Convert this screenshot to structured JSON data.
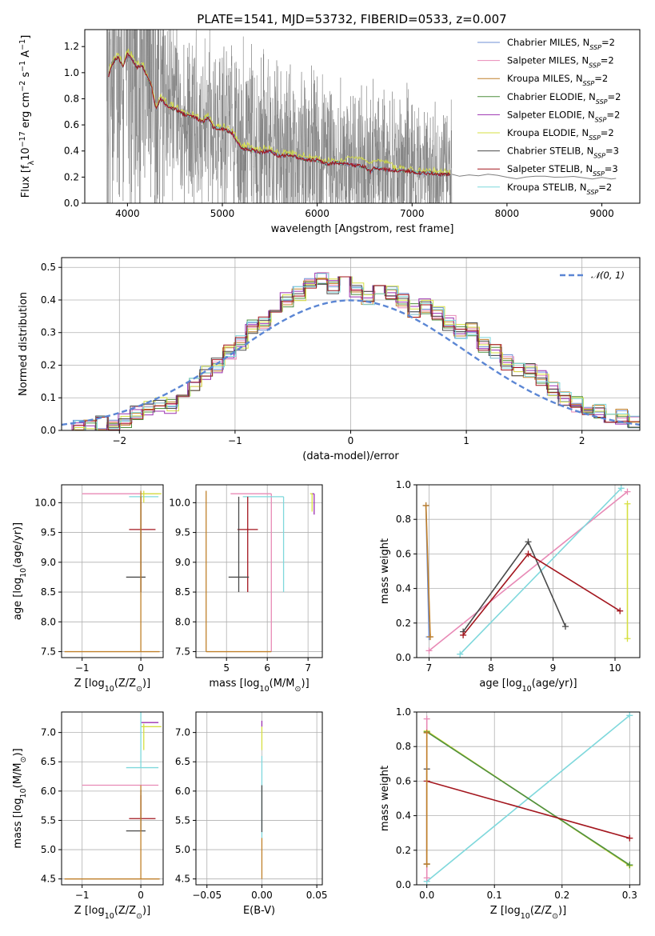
{
  "title": "PLATE=1541, MJD=53732, FIBERID=0533, z=0.007",
  "colors": {
    "Chabrier MILES": "#6f8fd6",
    "Salpeter MILES": "#e88ab6",
    "Kroupa MILES": "#c0802a",
    "Chabrier ELODIE": "#4f8f3f",
    "Salpeter ELODIE": "#9b30b0",
    "Kroupa ELODIE": "#d6df40",
    "Chabrier STELIB": "#4a4a4a",
    "Salpeter STELIB": "#a3161e",
    "Kroupa STELIB": "#7fd8dc",
    "data": "#7f7f7f",
    "normal": "#5b86d4",
    "orange": "#e8803a"
  },
  "chart_data": [
    {
      "id": "spectrum",
      "type": "line",
      "xlabel": "wavelength [Angstrom, rest frame]",
      "ylabel": "Flux [f$_\\lambda$10$^{-17}$ erg cm$^{-2}$ s$^{-1}$ A$^{-1}$]",
      "ylabel_parts": {
        "prefix": "Flux [f",
        "sub1": "λ",
        "mid1": "10",
        "sup1": "−17",
        "mid2": " erg cm",
        "sup2": "−2",
        "mid3": " s",
        "sup3": "−1",
        "mid4": " A",
        "sup4": "−1",
        "suffix": "]"
      },
      "xlim": [
        3550,
        9400
      ],
      "ylim": [
        0,
        1.33
      ],
      "xticks": [
        4000,
        5000,
        6000,
        7000,
        8000,
        9000
      ],
      "yticks": [
        0.0,
        0.2,
        0.4,
        0.6,
        0.8,
        1.0,
        1.2
      ],
      "ytick_labels": [
        "0.0",
        "0.2",
        "0.4",
        "0.6",
        "0.8",
        "1.0",
        "1.2"
      ],
      "legend_position": "upper right",
      "legend": [
        {
          "name": "Chabrier MILES",
          "pre": "Chabrier MILES, N",
          "sub": "SSP",
          "post": "=2"
        },
        {
          "name": "Salpeter MILES",
          "pre": "Salpeter MILES, N",
          "sub": "SSP",
          "post": "=2"
        },
        {
          "name": "Kroupa MILES",
          "pre": "Kroupa MILES, N",
          "sub": "SSP",
          "post": "=2"
        },
        {
          "name": "Chabrier ELODIE",
          "pre": "Chabrier ELODIE, N",
          "sub": "SSP",
          "post": "=2"
        },
        {
          "name": "Salpeter ELODIE",
          "pre": "Salpeter ELODIE, N",
          "sub": "SSP",
          "post": "=2"
        },
        {
          "name": "Kroupa ELODIE",
          "pre": "Kroupa ELODIE, N",
          "sub": "SSP",
          "post": "=2"
        },
        {
          "name": "Chabrier STELIB",
          "pre": "Chabrier STELIB, N",
          "sub": "SSP",
          "post": "=3"
        },
        {
          "name": "Salpeter STELIB",
          "pre": "Salpeter STELIB, N",
          "sub": "SSP",
          "post": "=3"
        },
        {
          "name": "Kroupa STELIB",
          "pre": "Kroupa STELIB, N",
          "sub": "SSP",
          "post": "=2"
        }
      ],
      "model_x": [
        3800,
        3850,
        3900,
        3950,
        4000,
        4050,
        4100,
        4150,
        4200,
        4250,
        4300,
        4350,
        4400,
        4450,
        4500,
        4600,
        4700,
        4800,
        4850,
        4900,
        5000,
        5100,
        5150,
        5200,
        5300,
        5400,
        5500,
        5600,
        5700,
        5800,
        5900,
        6000,
        6100,
        6200,
        6300,
        6400,
        6500,
        6563,
        6600,
        6700,
        6800,
        6900,
        7000,
        7100,
        7200,
        7300,
        7400
      ],
      "model_y": [
        0.98,
        1.08,
        1.12,
        1.05,
        1.14,
        1.1,
        1.04,
        1.06,
        0.98,
        0.9,
        0.72,
        0.8,
        0.76,
        0.73,
        0.72,
        0.68,
        0.66,
        0.62,
        0.66,
        0.58,
        0.57,
        0.54,
        0.48,
        0.42,
        0.41,
        0.39,
        0.4,
        0.36,
        0.37,
        0.35,
        0.33,
        0.33,
        0.3,
        0.31,
        0.3,
        0.29,
        0.28,
        0.24,
        0.27,
        0.26,
        0.25,
        0.25,
        0.24,
        0.23,
        0.23,
        0.22,
        0.22
      ],
      "data_tail_x": [
        7420,
        7500,
        7600,
        7700,
        7800,
        7900,
        8000,
        8100,
        8200,
        8300,
        8400,
        8500,
        8600,
        8700,
        8800,
        8900,
        9000,
        9100,
        9150
      ],
      "data_tail_y": [
        0.22,
        0.21,
        0.22,
        0.21,
        0.22,
        0.21,
        0.2,
        0.19,
        0.2,
        0.21,
        0.21,
        0.2,
        0.2,
        0.21,
        0.2,
        0.19,
        0.2,
        0.19,
        0.19
      ],
      "data_noise_xrange": [
        3780,
        7420
      ]
    },
    {
      "id": "residuals",
      "type": "histogram",
      "xlabel": "(data-model)/error",
      "ylabel": "Normed distribution",
      "xlim": [
        -2.5,
        2.5
      ],
      "ylim": [
        0,
        0.53
      ],
      "xticks": [
        -2,
        -1,
        0,
        1,
        2
      ],
      "xtick_labels": [
        "−2",
        "−1",
        "0",
        "1",
        "2"
      ],
      "yticks": [
        0.0,
        0.1,
        0.2,
        0.3,
        0.4,
        0.5
      ],
      "ytick_labels": [
        "0.0",
        "0.1",
        "0.2",
        "0.3",
        "0.4",
        "0.5"
      ],
      "legend_position": "upper right",
      "normal_legend": "𝒩(0, 1)",
      "bin_width": 0.1,
      "bins_start": -2.5,
      "hist_values": [
        0.0,
        0.01,
        0.01,
        0.02,
        0.02,
        0.03,
        0.05,
        0.07,
        0.08,
        0.07,
        0.1,
        0.14,
        0.18,
        0.2,
        0.24,
        0.27,
        0.32,
        0.33,
        0.36,
        0.4,
        0.42,
        0.45,
        0.47,
        0.44,
        0.45,
        0.43,
        0.41,
        0.44,
        0.42,
        0.4,
        0.37,
        0.38,
        0.36,
        0.33,
        0.3,
        0.31,
        0.26,
        0.24,
        0.21,
        0.19,
        0.18,
        0.16,
        0.13,
        0.1,
        0.08,
        0.07,
        0.06,
        0.04,
        0.04,
        0.03
      ],
      "series_jitter": [
        0.0,
        0.02,
        -0.015,
        0.01,
        -0.02,
        0.025,
        -0.01,
        0.015,
        0.005
      ]
    },
    {
      "id": "age_vs_Z",
      "type": "errorbar",
      "xlabel": "Z [log$_{10}$(Z/Z$_\\odot$)]",
      "ylabel": "age  [log$_{10}$(age/yr)]",
      "xlim": [
        -1.35,
        0.38
      ],
      "ylim": [
        7.4,
        10.3
      ],
      "xticks": [
        -1,
        0
      ],
      "xtick_labels": [
        "−1",
        "0"
      ],
      "yticks": [
        7.5,
        8.0,
        8.5,
        9.0,
        9.5,
        10.0
      ],
      "ytick_labels": [
        "7.5",
        "8.0",
        "8.5",
        "9.0",
        "9.5",
        "10.0"
      ],
      "points": [
        {
          "series": "Salpeter MILES",
          "x": 0.0,
          "y": 10.15,
          "xerr": [
            1.0,
            0.3
          ],
          "yerr": [
            0.02,
            0.02
          ]
        },
        {
          "series": "Kroupa STELIB",
          "x": 0.0,
          "y": 10.1,
          "xerr": [
            0.2,
            0.3
          ],
          "yerr": [
            1.6,
            0.05
          ]
        },
        {
          "series": "Salpeter STELIB",
          "x": 0.0,
          "y": 9.55,
          "xerr": [
            0.2,
            0.25
          ],
          "yerr": [
            1.05,
            0.55
          ]
        },
        {
          "series": "Chabrier STELIB",
          "x": 0.0,
          "y": 8.75,
          "xerr": [
            0.25,
            0.08
          ],
          "yerr": [
            0.25,
            1.35
          ]
        },
        {
          "series": "Kroupa ELODIE",
          "x": 0.05,
          "y": 10.15,
          "xerr": [
            0.05,
            0.3
          ],
          "yerr": [
            0.15,
            0.05
          ]
        },
        {
          "series": "Kroupa MILES",
          "x": 0.0,
          "y": 7.5,
          "xerr": [
            1.3,
            0.32
          ],
          "yerr": [
            0.0,
            2.7
          ]
        }
      ]
    },
    {
      "id": "age_vs_mass",
      "type": "errorbar",
      "xlabel": "mass [log$_{10}$(M/M$_\\odot$)]",
      "ylabel": "",
      "xlim": [
        4.25,
        7.35
      ],
      "ylim": [
        7.4,
        10.3
      ],
      "xticks": [
        5,
        6,
        7
      ],
      "xtick_labels": [
        "5",
        "6",
        "7"
      ],
      "yticks": [
        7.5,
        8.0,
        8.5,
        9.0,
        9.5,
        10.0
      ],
      "ytick_labels": [
        "7.5",
        "8.0",
        "8.5",
        "9.0",
        "9.5",
        "10.0"
      ],
      "points": [
        {
          "series": "Salpeter MILES",
          "x": 6.1,
          "y": 10.15,
          "xerr": [
            1.0,
            0.0
          ],
          "yerr": [
            2.65,
            0.0
          ]
        },
        {
          "series": "Kroupa STELIB",
          "x": 6.4,
          "y": 10.1,
          "xerr": [
            1.0,
            0.0
          ],
          "yerr": [
            1.6,
            0.0
          ]
        },
        {
          "series": "Salpeter STELIB",
          "x": 5.52,
          "y": 9.55,
          "xerr": [
            0.25,
            0.25
          ],
          "yerr": [
            1.05,
            0.55
          ]
        },
        {
          "series": "Chabrier STELIB",
          "x": 5.3,
          "y": 8.75,
          "xerr": [
            0.25,
            0.25
          ],
          "yerr": [
            0.25,
            1.35
          ]
        },
        {
          "series": "Salpeter ELODIE",
          "x": 7.15,
          "y": 10.15,
          "xerr": [
            0.05,
            0.0
          ],
          "yerr": [
            0.35,
            0.0
          ]
        },
        {
          "series": "Kroupa ELODIE",
          "x": 7.1,
          "y": 10.15,
          "xerr": [
            0.05,
            0.0
          ],
          "yerr": [
            0.3,
            0.0
          ]
        },
        {
          "series": "Kroupa MILES",
          "x": 4.5,
          "y": 7.5,
          "xerr": [
            0.0,
            1.6
          ],
          "yerr": [
            0.0,
            2.7
          ]
        }
      ]
    },
    {
      "id": "massweight_vs_age",
      "type": "line",
      "xlabel": "age  [log$_{10}$(age/yr)]",
      "ylabel": "mass weight",
      "xlim": [
        6.8,
        10.4
      ],
      "ylim": [
        0.0,
        1.0
      ],
      "xticks": [
        7,
        8,
        9,
        10
      ],
      "xtick_labels": [
        "7",
        "8",
        "9",
        "10"
      ],
      "yticks": [
        0.0,
        0.2,
        0.4,
        0.6,
        0.8,
        1.0
      ],
      "ytick_labels": [
        "0.0",
        "0.2",
        "0.4",
        "0.6",
        "0.8",
        "1.0"
      ],
      "series": [
        {
          "name": "Chabrier MILES",
          "x": [
            6.95,
            7.0
          ],
          "y": [
            0.88,
            0.12
          ]
        },
        {
          "name": "Kroupa MILES",
          "x": [
            6.95,
            7.02
          ],
          "y": [
            0.88,
            0.12
          ]
        },
        {
          "name": "Salpeter MILES",
          "x": [
            7.0,
            10.2
          ],
          "y": [
            0.04,
            0.96
          ]
        },
        {
          "name": "Kroupa STELIB",
          "x": [
            7.5,
            10.1
          ],
          "y": [
            0.02,
            0.98
          ]
        },
        {
          "name": "Chabrier STELIB",
          "x": [
            7.55,
            8.6,
            9.2
          ],
          "y": [
            0.15,
            0.67,
            0.18
          ]
        },
        {
          "name": "Salpeter STELIB",
          "x": [
            7.55,
            8.6,
            10.08
          ],
          "y": [
            0.13,
            0.6,
            0.27
          ]
        },
        {
          "name": "Kroupa ELODIE",
          "x": [
            10.2,
            10.2
          ],
          "y": [
            0.89,
            0.11
          ]
        }
      ]
    },
    {
      "id": "mass_vs_Z",
      "type": "errorbar",
      "xlabel": "Z [log$_{10}$(Z/Z$_\\odot$)]",
      "ylabel": "mass [log$_{10}$(M/M$_\\odot$)]",
      "xlim": [
        -1.35,
        0.38
      ],
      "ylim": [
        4.4,
        7.35
      ],
      "xticks": [
        -1,
        0
      ],
      "xtick_labels": [
        "−1",
        "0"
      ],
      "yticks": [
        4.5,
        5.0,
        5.5,
        6.0,
        6.5,
        7.0
      ],
      "ytick_labels": [
        "4.5",
        "5.0",
        "5.5",
        "6.0",
        "6.5",
        "7.0"
      ],
      "points": [
        {
          "series": "Salpeter ELODIE",
          "x": 0.0,
          "y": 7.17,
          "xerr": [
            0.0,
            0.3
          ],
          "yerr": [
            0.0,
            0.0
          ]
        },
        {
          "series": "Kroupa ELODIE",
          "x": 0.05,
          "y": 7.1,
          "xerr": [
            0.05,
            0.3
          ],
          "yerr": [
            0.4,
            0.05
          ]
        },
        {
          "series": "Kroupa STELIB",
          "x": 0.0,
          "y": 6.4,
          "xerr": [
            0.25,
            0.3
          ],
          "yerr": [
            0.0,
            1.2
          ]
        },
        {
          "series": "Salpeter MILES",
          "x": 0.0,
          "y": 6.1,
          "xerr": [
            1.0,
            0.3
          ],
          "yerr": [
            0.0,
            0.0
          ]
        },
        {
          "series": "Salpeter STELIB",
          "x": 0.0,
          "y": 5.53,
          "xerr": [
            0.2,
            0.25
          ],
          "yerr": [
            0.0,
            0.4
          ]
        },
        {
          "series": "Chabrier STELIB",
          "x": 0.0,
          "y": 5.32,
          "xerr": [
            0.25,
            0.08
          ],
          "yerr": [
            0.0,
            0.7
          ]
        },
        {
          "series": "Kroupa MILES",
          "x": 0.0,
          "y": 4.5,
          "xerr": [
            1.3,
            0.32
          ],
          "yerr": [
            0.0,
            1.6
          ]
        }
      ]
    },
    {
      "id": "mass_vs_EBV",
      "type": "errorbar",
      "xlabel": "E(B-V)",
      "ylabel": "",
      "xlim": [
        -0.06,
        0.055
      ],
      "ylim": [
        4.4,
        7.35
      ],
      "xticks": [
        -0.05,
        0.0,
        0.05
      ],
      "xtick_labels": [
        "−0.05",
        "0.00",
        "0.05"
      ],
      "yticks": [
        4.5,
        5.0,
        5.5,
        6.0,
        6.5,
        7.0
      ],
      "ytick_labels": [
        "4.5",
        "5.0",
        "5.5",
        "6.0",
        "6.5",
        "7.0"
      ],
      "vsegments": [
        {
          "series": "Salpeter ELODIE",
          "x": 0.0,
          "y0": 7.1,
          "y1": 7.2
        },
        {
          "series": "Kroupa ELODIE",
          "x": 0.0,
          "y0": 6.7,
          "y1": 7.1
        },
        {
          "series": "Kroupa STELIB",
          "x": 0.0,
          "y0": 5.2,
          "y1": 6.6
        },
        {
          "series": "Chabrier STELIB",
          "x": 0.0,
          "y0": 5.3,
          "y1": 6.1
        },
        {
          "series": "Kroupa MILES",
          "x": 0.0,
          "y0": 4.5,
          "y1": 5.2
        }
      ]
    },
    {
      "id": "massweight_vs_Z",
      "type": "line",
      "xlabel": "Z [log$_{10}$(Z/Z$_\\odot$)]",
      "ylabel": "mass weight",
      "xlim": [
        -0.015,
        0.315
      ],
      "ylim": [
        0.0,
        1.0
      ],
      "xticks": [
        0.0,
        0.1,
        0.2,
        0.3
      ],
      "xtick_labels": [
        "0.0",
        "0.1",
        "0.2",
        "0.3"
      ],
      "yticks": [
        0.0,
        0.2,
        0.4,
        0.6,
        0.8,
        1.0
      ],
      "ytick_labels": [
        "0.0",
        "0.2",
        "0.4",
        "0.6",
        "0.8",
        "1.0"
      ],
      "series": [
        {
          "name": "Kroupa STELIB",
          "x": [
            0.0,
            0.3
          ],
          "y": [
            0.02,
            0.98
          ]
        },
        {
          "name": "Kroupa ELODIE",
          "x": [
            0.0,
            0.3
          ],
          "y": [
            0.89,
            0.11
          ]
        },
        {
          "name": "Chabrier ELODIE",
          "x": [
            0.0,
            0.3
          ],
          "y": [
            0.885,
            0.115
          ]
        },
        {
          "name": "Salpeter STELIB",
          "x": [
            0.0,
            0.3
          ],
          "y": [
            0.6,
            0.27
          ]
        },
        {
          "name": "Salpeter MILES",
          "x": [
            0.0,
            0.0
          ],
          "y": [
            0.04,
            0.96
          ]
        },
        {
          "name": "Chabrier STELIB",
          "x": [
            0.0,
            0.0
          ],
          "y": [
            0.12,
            0.67
          ]
        },
        {
          "name": "Kroupa MILES",
          "x": [
            0.0,
            0.0
          ],
          "y": [
            0.12,
            0.88
          ]
        }
      ]
    }
  ]
}
